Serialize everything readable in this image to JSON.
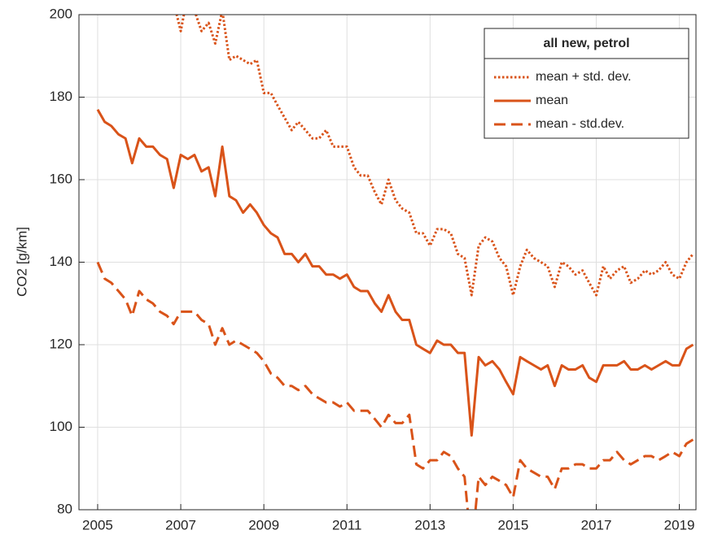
{
  "chart_data": {
    "type": "line",
    "ylabel": "CO2 [g/km]",
    "legend_title": "all new, petrol",
    "legend": "upper right",
    "grid": true,
    "xlim": [
      2004.55,
      2019.4
    ],
    "ylim": [
      80,
      200
    ],
    "xticks": [
      2005,
      2007,
      2009,
      2011,
      2013,
      2015,
      2017,
      2019
    ],
    "yticks": [
      80,
      100,
      120,
      140,
      160,
      180,
      200
    ],
    "x": [
      2005,
      2005.17,
      2005.33,
      2005.5,
      2005.67,
      2005.83,
      2006,
      2006.17,
      2006.33,
      2006.5,
      2006.67,
      2006.83,
      2007,
      2007.17,
      2007.33,
      2007.5,
      2007.67,
      2007.83,
      2008,
      2008.17,
      2008.33,
      2008.5,
      2008.67,
      2008.83,
      2009,
      2009.17,
      2009.33,
      2009.5,
      2009.67,
      2009.83,
      2010,
      2010.17,
      2010.33,
      2010.5,
      2010.67,
      2010.83,
      2011,
      2011.17,
      2011.33,
      2011.5,
      2011.67,
      2011.83,
      2012,
      2012.17,
      2012.33,
      2012.5,
      2012.67,
      2012.83,
      2013,
      2013.17,
      2013.33,
      2013.5,
      2013.67,
      2013.83,
      2014,
      2014.17,
      2014.33,
      2014.5,
      2014.67,
      2014.83,
      2015,
      2015.17,
      2015.33,
      2015.5,
      2015.67,
      2015.83,
      2016,
      2016.17,
      2016.33,
      2016.5,
      2016.67,
      2016.83,
      2017,
      2017.17,
      2017.33,
      2017.5,
      2017.67,
      2017.83,
      2018,
      2018.17,
      2018.33,
      2018.5,
      2018.67,
      2018.83,
      2019,
      2019.17,
      2019.33
    ],
    "series": [
      {
        "name": "mean + std. dev.",
        "color": "#d95319",
        "linestyle": "dotted",
        "values": [
          null,
          null,
          null,
          null,
          null,
          null,
          null,
          null,
          null,
          null,
          null,
          203,
          196,
          205,
          201,
          196,
          198,
          193,
          201,
          189,
          190,
          189,
          188,
          189,
          181,
          181,
          178,
          175,
          172,
          174,
          172,
          170,
          170,
          172,
          168,
          168,
          168,
          163,
          161,
          161,
          157,
          154,
          160,
          155,
          153,
          152,
          147,
          147,
          144,
          148,
          148,
          147,
          142,
          141,
          132,
          144,
          146,
          145,
          141,
          139,
          132,
          139,
          143,
          141,
          140,
          139,
          134,
          140,
          139,
          137,
          138,
          135,
          132,
          139,
          136,
          138,
          139,
          135,
          136,
          138,
          137,
          138,
          140,
          137,
          136,
          140,
          142
        ]
      },
      {
        "name": "mean",
        "color": "#d95319",
        "linestyle": "solid",
        "values": [
          177,
          174,
          173,
          171,
          170,
          164,
          170,
          168,
          168,
          166,
          165,
          158,
          166,
          165,
          166,
          162,
          163,
          156,
          168,
          156,
          155,
          152,
          154,
          152,
          149,
          147,
          146,
          142,
          142,
          140,
          142,
          139,
          139,
          137,
          137,
          136,
          137,
          134,
          133,
          133,
          130,
          128,
          132,
          128,
          126,
          126,
          120,
          119,
          118,
          121,
          120,
          120,
          118,
          118,
          98,
          117,
          115,
          116,
          114,
          111,
          108,
          117,
          116,
          115,
          114,
          115,
          110,
          115,
          114,
          114,
          115,
          112,
          111,
          115,
          115,
          115,
          116,
          114,
          114,
          115,
          114,
          115,
          116,
          115,
          115,
          119,
          120
        ]
      },
      {
        "name": "mean - std.dev.",
        "color": "#d95319",
        "linestyle": "dashed",
        "values": [
          140,
          136,
          135,
          133,
          131,
          127,
          133,
          131,
          130,
          128,
          127,
          125,
          128,
          128,
          128,
          126,
          125,
          120,
          124,
          120,
          121,
          120,
          119,
          118,
          116,
          113,
          112,
          110,
          110,
          109,
          110,
          108,
          107,
          106,
          106,
          105,
          106,
          104,
          104,
          104,
          102,
          100,
          103,
          101,
          101,
          103,
          91,
          90,
          92,
          92,
          94,
          93,
          90,
          88,
          70,
          88,
          86,
          88,
          87,
          86,
          83,
          92,
          90,
          89,
          88,
          88,
          85,
          90,
          90,
          91,
          91,
          90,
          90,
          92,
          92,
          94,
          92,
          91,
          92,
          93,
          93,
          92,
          93,
          94,
          93,
          96,
          97
        ]
      }
    ]
  }
}
